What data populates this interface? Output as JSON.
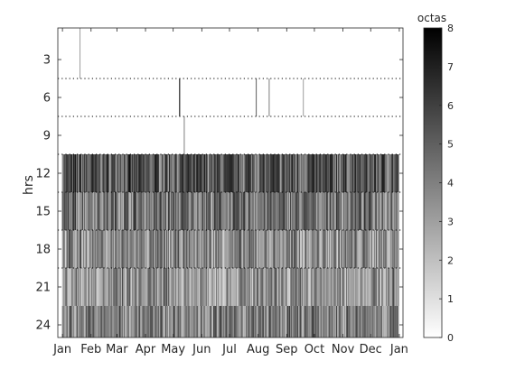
{
  "chart_data": {
    "type": "heatmap",
    "xlabel": "",
    "ylabel": "hrs",
    "x_tick_labels": [
      "Jan",
      "Feb",
      "Mar",
      "Apr",
      "May",
      "Jun",
      "Jul",
      "Aug",
      "Sep",
      "Oct",
      "Nov",
      "Dec",
      "Jan"
    ],
    "x_tick_days": [
      1,
      32,
      60,
      91,
      121,
      152,
      182,
      213,
      244,
      274,
      305,
      335,
      366
    ],
    "xlim_days": [
      -4,
      370
    ],
    "ylim_hours": [
      0.5,
      25
    ],
    "y_ticks": [
      3,
      6,
      9,
      12,
      15,
      18,
      21,
      24
    ],
    "hour_bands": [
      {
        "start_hour": 0.5,
        "end_hour": 4.5,
        "cloud_octas": 0,
        "missing": true
      },
      {
        "start_hour": 4.5,
        "end_hour": 7.5,
        "cloud_octas": 0,
        "missing": true
      },
      {
        "start_hour": 7.5,
        "end_hour": 10.5,
        "cloud_octas": 0,
        "missing": true
      },
      {
        "start_hour": 10.5,
        "end_hour": 13.5,
        "mean_octas": 5.2
      },
      {
        "start_hour": 13.5,
        "end_hour": 16.5,
        "mean_octas": 4.4
      },
      {
        "start_hour": 16.5,
        "end_hour": 19.5,
        "mean_octas": 3.6
      },
      {
        "start_hour": 19.5,
        "end_hour": 22.5,
        "mean_octas": 3.3
      },
      {
        "start_hour": 22.5,
        "end_hour": 25,
        "mean_octas": 4.0
      }
    ],
    "sparse_marks": [
      {
        "day": 20,
        "band_start": 0.5,
        "band_end": 4.5,
        "octas": 3
      },
      {
        "day": 128,
        "band_start": 4.5,
        "band_end": 7.5,
        "octas": 8
      },
      {
        "day": 133,
        "band_start": 7.5,
        "band_end": 10.5,
        "octas": 4
      },
      {
        "day": 211,
        "band_start": 4.5,
        "band_end": 7.5,
        "octas": 5
      },
      {
        "day": 225,
        "band_start": 4.5,
        "band_end": 7.5,
        "octas": 4
      },
      {
        "day": 262,
        "band_start": 4.5,
        "band_end": 7.5,
        "octas": 3
      }
    ],
    "band_boundaries_dotted": [
      4.5,
      7.5,
      10.5,
      13.5,
      16.5,
      19.5
    ],
    "colorbar": {
      "title": "octas",
      "min": 0,
      "max": 8,
      "ticks": [
        0,
        1,
        2,
        3,
        4,
        5,
        6,
        7,
        8
      ],
      "colormap": "gray-reversed"
    },
    "day_range": [
      1,
      365
    ],
    "random_seed": 7,
    "grid": false
  }
}
